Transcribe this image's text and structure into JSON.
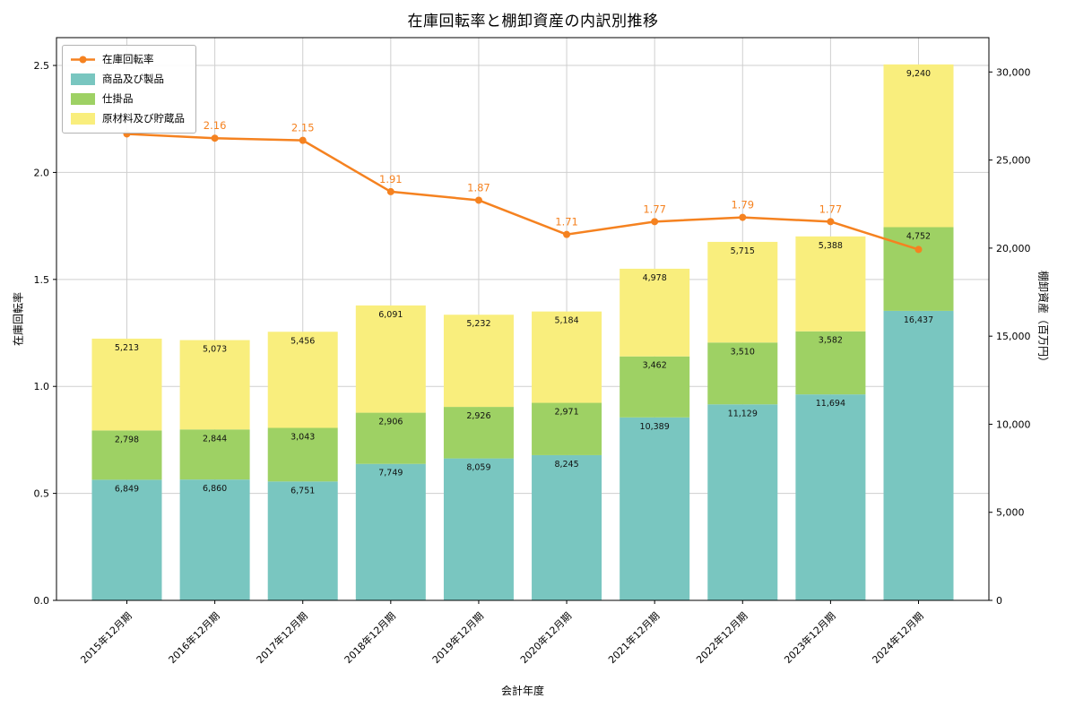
{
  "chart_data": {
    "type": "bar",
    "title": "在庫回転率と棚卸資産の内訳別推移",
    "xlabel": "会計年度",
    "ylabel_left": "在庫回転率",
    "ylabel_right": "棚卸資産（百万円）",
    "categories": [
      "2015年12月期",
      "2016年12月期",
      "2017年12月期",
      "2018年12月期",
      "2019年12月期",
      "2020年12月期",
      "2021年12月期",
      "2022年12月期",
      "2023年12月期",
      "2024年12月期"
    ],
    "series": [
      {
        "name": "商品及び製品",
        "kind": "bar",
        "stack": true,
        "color": "#79c6c0",
        "values": [
          6849,
          6860,
          6751,
          7749,
          8059,
          8245,
          10389,
          11129,
          11694,
          16437
        ]
      },
      {
        "name": "仕掛品",
        "kind": "bar",
        "stack": true,
        "color": "#9ed164",
        "values": [
          2798,
          2844,
          3043,
          2906,
          2926,
          2971,
          3462,
          3510,
          3582,
          4752
        ]
      },
      {
        "name": "原材料及び貯蔵品",
        "kind": "bar",
        "stack": true,
        "color": "#f9ee7d",
        "values": [
          5213,
          5073,
          5456,
          6091,
          5232,
          5184,
          4978,
          5715,
          5388,
          9240
        ]
      },
      {
        "name": "在庫回転率",
        "kind": "line",
        "axis": "left",
        "color": "#f58220",
        "values": [
          2.18,
          2.16,
          2.15,
          1.91,
          1.87,
          1.71,
          1.77,
          1.79,
          1.77,
          1.64
        ],
        "point_labels": [
          null,
          "2.16",
          "2.15",
          "1.91",
          "1.87",
          "1.71",
          "1.77",
          "1.79",
          "1.77",
          null
        ]
      }
    ],
    "ylim_left": [
      0,
      2.63
    ],
    "ylim_right": [
      0,
      31950
    ],
    "yticks_left": [
      0.0,
      0.5,
      1.0,
      1.5,
      2.0,
      2.5
    ],
    "yticks_right": [
      0,
      5000,
      10000,
      15000,
      20000,
      25000,
      30000
    ],
    "grid": true,
    "legend": {
      "position": "upper left",
      "items": [
        {
          "label": "在庫回転率",
          "marker": "line",
          "color": "#f58220"
        },
        {
          "label": "商品及び製品",
          "marker": "square",
          "color": "#79c6c0"
        },
        {
          "label": "仕掛品",
          "marker": "square",
          "color": "#9ed164"
        },
        {
          "label": "原材料及び貯蔵品",
          "marker": "square",
          "color": "#f9ee7d"
        }
      ]
    },
    "colors": {
      "line": "#f58220",
      "grid": "#cfcfcf",
      "frame": "#000000"
    }
  }
}
